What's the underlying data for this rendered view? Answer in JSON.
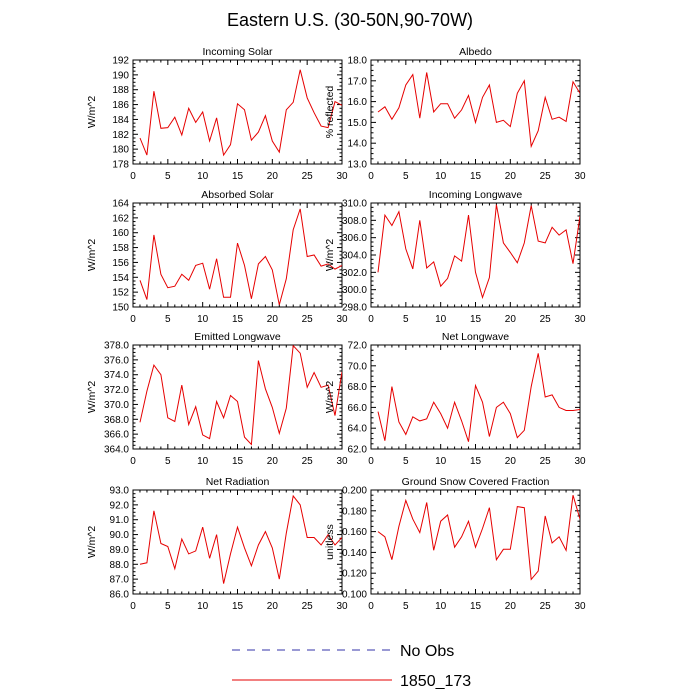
{
  "chart_data": {
    "type": "line",
    "title": "Eastern U.S. (30-50N,90-70W)",
    "series_color": "#e60000",
    "obs_color": "#3333aa",
    "legend": [
      {
        "label": "No Obs",
        "style": "dashed",
        "color": "#3333aa"
      },
      {
        "label": "1850_173",
        "style": "solid",
        "color": "#e60000"
      }
    ],
    "panels": [
      {
        "title": "Incoming Solar",
        "ylabel": "W/m^2",
        "xlim": [
          0,
          30
        ],
        "xticks": [
          "0",
          "5",
          "10",
          "15",
          "20",
          "25",
          "30"
        ],
        "ylim": [
          178,
          192
        ],
        "yticks": [
          "178",
          "180",
          "182",
          "184",
          "186",
          "188",
          "190",
          "192"
        ],
        "x": [
          1,
          2,
          3,
          4,
          5,
          6,
          7,
          8,
          9,
          10,
          11,
          12,
          13,
          14,
          15,
          16,
          17,
          18,
          19,
          20,
          21,
          22,
          23,
          24,
          25,
          26,
          27,
          28,
          29,
          30
        ],
        "values": [
          181.5,
          179.2,
          187.8,
          182.8,
          182.9,
          184.3,
          181.9,
          185.5,
          183.6,
          185.0,
          181.1,
          184.2,
          179.2,
          180.6,
          186.1,
          185.3,
          181.2,
          182.3,
          184.5,
          181.1,
          179.6,
          185.3,
          186.3,
          190.7,
          186.9,
          184.9,
          183.1,
          182.9,
          186.4,
          185.9
        ]
      },
      {
        "title": "Albedo",
        "ylabel": "% reflected",
        "xlim": [
          0,
          30
        ],
        "xticks": [
          "0",
          "5",
          "10",
          "15",
          "20",
          "25",
          "30"
        ],
        "ylim": [
          13,
          18
        ],
        "yticks": [
          "13.0",
          "14.0",
          "15.0",
          "16.0",
          "17.0",
          "18.0"
        ],
        "x": [
          1,
          2,
          3,
          4,
          5,
          6,
          7,
          8,
          9,
          10,
          11,
          12,
          13,
          14,
          15,
          16,
          17,
          18,
          19,
          20,
          21,
          22,
          23,
          24,
          25,
          26,
          27,
          28,
          29,
          30
        ],
        "values": [
          15.5,
          15.75,
          15.15,
          15.7,
          16.8,
          17.3,
          15.2,
          17.4,
          15.5,
          15.9,
          15.9,
          15.2,
          15.6,
          16.3,
          15.0,
          16.2,
          16.8,
          15.0,
          15.1,
          14.8,
          16.4,
          17.0,
          13.85,
          14.6,
          16.2,
          15.15,
          15.25,
          15.05,
          16.95,
          16.4
        ]
      },
      {
        "title": "Absorbed Solar",
        "ylabel": "W/m^2",
        "xlim": [
          0,
          30
        ],
        "xticks": [
          "0",
          "5",
          "10",
          "15",
          "20",
          "25",
          "30"
        ],
        "ylim": [
          150,
          164
        ],
        "yticks": [
          "150",
          "152",
          "154",
          "156",
          "158",
          "160",
          "162",
          "164"
        ],
        "x": [
          1,
          2,
          3,
          4,
          5,
          6,
          7,
          8,
          9,
          10,
          11,
          12,
          13,
          14,
          15,
          16,
          17,
          18,
          19,
          20,
          21,
          22,
          23,
          24,
          25,
          26,
          27,
          28,
          29,
          30
        ],
        "values": [
          153.6,
          151.0,
          159.7,
          154.4,
          152.6,
          152.8,
          154.4,
          153.6,
          155.6,
          155.9,
          152.4,
          156.5,
          151.3,
          151.3,
          158.6,
          155.6,
          151.1,
          155.8,
          156.8,
          155.0,
          150.3,
          153.8,
          160.4,
          163.2,
          156.8,
          157.0,
          155.5,
          155.8,
          155.1,
          155.6
        ]
      },
      {
        "title": "Incoming Longwave",
        "ylabel": "W/m^2",
        "xlim": [
          0,
          30
        ],
        "xticks": [
          "0",
          "5",
          "10",
          "15",
          "20",
          "25",
          "30"
        ],
        "ylim": [
          298,
          310
        ],
        "yticks": [
          "298.0",
          "300.0",
          "302.0",
          "304.0",
          "306.0",
          "308.0",
          "310.0"
        ],
        "x": [
          1,
          2,
          3,
          4,
          5,
          6,
          7,
          8,
          9,
          10,
          11,
          12,
          13,
          14,
          15,
          16,
          17,
          18,
          19,
          20,
          21,
          22,
          23,
          24,
          25,
          26,
          27,
          28,
          29,
          30
        ],
        "values": [
          302.0,
          308.6,
          307.4,
          309.0,
          304.7,
          302.4,
          308.0,
          302.5,
          303.2,
          300.4,
          301.3,
          303.9,
          303.3,
          308.6,
          302.0,
          299.1,
          301.4,
          309.8,
          305.4,
          304.3,
          303.1,
          305.4,
          309.7,
          305.6,
          305.4,
          307.2,
          306.3,
          306.9,
          303.0,
          308.5
        ]
      },
      {
        "title": "Emitted Longwave",
        "ylabel": "W/m^2",
        "xlim": [
          0,
          30
        ],
        "xticks": [
          "0",
          "5",
          "10",
          "15",
          "20",
          "25",
          "30"
        ],
        "ylim": [
          364,
          378
        ],
        "yticks": [
          "364.0",
          "366.0",
          "368.0",
          "370.0",
          "372.0",
          "374.0",
          "376.0",
          "378.0"
        ],
        "x": [
          1,
          2,
          3,
          4,
          5,
          6,
          7,
          8,
          9,
          10,
          11,
          12,
          13,
          14,
          15,
          16,
          17,
          18,
          19,
          20,
          21,
          22,
          23,
          24,
          25,
          26,
          27,
          28,
          29,
          30
        ],
        "values": [
          367.6,
          371.8,
          375.3,
          374.0,
          368.2,
          367.7,
          372.6,
          367.3,
          369.7,
          365.9,
          365.4,
          370.4,
          368.2,
          371.2,
          370.4,
          365.6,
          364.6,
          375.9,
          372.1,
          369.6,
          366.1,
          369.5,
          377.9,
          376.9,
          372.3,
          374.3,
          372.3,
          372.6,
          368.5,
          374.4
        ]
      },
      {
        "title": "Net Longwave",
        "ylabel": "W/m^2",
        "xlim": [
          0,
          30
        ],
        "xticks": [
          "0",
          "5",
          "10",
          "15",
          "20",
          "25",
          "30"
        ],
        "ylim": [
          62,
          72
        ],
        "yticks": [
          "62.0",
          "64.0",
          "66.0",
          "68.0",
          "70.0",
          "72.0"
        ],
        "x": [
          1,
          2,
          3,
          4,
          5,
          6,
          7,
          8,
          9,
          10,
          11,
          12,
          13,
          14,
          15,
          16,
          17,
          18,
          19,
          20,
          21,
          22,
          23,
          24,
          25,
          26,
          27,
          28,
          29,
          30
        ],
        "values": [
          65.6,
          62.8,
          68.0,
          64.6,
          63.4,
          65.1,
          64.7,
          64.9,
          66.5,
          65.4,
          64.0,
          66.5,
          64.7,
          62.7,
          68.1,
          66.5,
          63.2,
          66.0,
          66.5,
          65.4,
          63.1,
          63.8,
          68.0,
          71.2,
          67.0,
          67.2,
          66.0,
          65.7,
          65.7,
          65.8
        ]
      },
      {
        "title": "Net Radiation",
        "ylabel": "W/m^2",
        "xlim": [
          0,
          30
        ],
        "xticks": [
          "0",
          "5",
          "10",
          "15",
          "20",
          "25",
          "30"
        ],
        "ylim": [
          86,
          93
        ],
        "yticks": [
          "86.0",
          "87.0",
          "88.0",
          "89.0",
          "90.0",
          "91.0",
          "92.0",
          "93.0"
        ],
        "x": [
          1,
          2,
          3,
          4,
          5,
          6,
          7,
          8,
          9,
          10,
          11,
          12,
          13,
          14,
          15,
          16,
          17,
          18,
          19,
          20,
          21,
          22,
          23,
          24,
          25,
          26,
          27,
          28,
          29,
          30
        ],
        "values": [
          88.0,
          88.1,
          91.6,
          89.4,
          89.2,
          87.7,
          89.7,
          88.7,
          88.9,
          90.5,
          88.4,
          90.0,
          86.7,
          88.7,
          90.5,
          89.1,
          87.9,
          89.3,
          90.2,
          89.1,
          87.0,
          90.1,
          92.6,
          92.0,
          89.8,
          89.8,
          89.3,
          90.0,
          89.3,
          89.8
        ]
      },
      {
        "title": "Ground Snow Covered Fraction",
        "ylabel": "unitless",
        "xlim": [
          0,
          30
        ],
        "xticks": [
          "0",
          "5",
          "10",
          "15",
          "20",
          "25",
          "30"
        ],
        "ylim": [
          0.1,
          0.2
        ],
        "yticks": [
          "0.100",
          "0.120",
          "0.140",
          "0.160",
          "0.180",
          "0.200"
        ],
        "x": [
          1,
          2,
          3,
          4,
          5,
          6,
          7,
          8,
          9,
          10,
          11,
          12,
          13,
          14,
          15,
          16,
          17,
          18,
          19,
          20,
          21,
          22,
          23,
          24,
          25,
          26,
          27,
          28,
          29,
          30
        ],
        "values": [
          0.16,
          0.155,
          0.133,
          0.165,
          0.19,
          0.172,
          0.159,
          0.188,
          0.142,
          0.17,
          0.176,
          0.145,
          0.155,
          0.17,
          0.145,
          0.163,
          0.183,
          0.133,
          0.143,
          0.143,
          0.184,
          0.183,
          0.114,
          0.122,
          0.175,
          0.149,
          0.155,
          0.142,
          0.195,
          0.172
        ]
      }
    ]
  }
}
